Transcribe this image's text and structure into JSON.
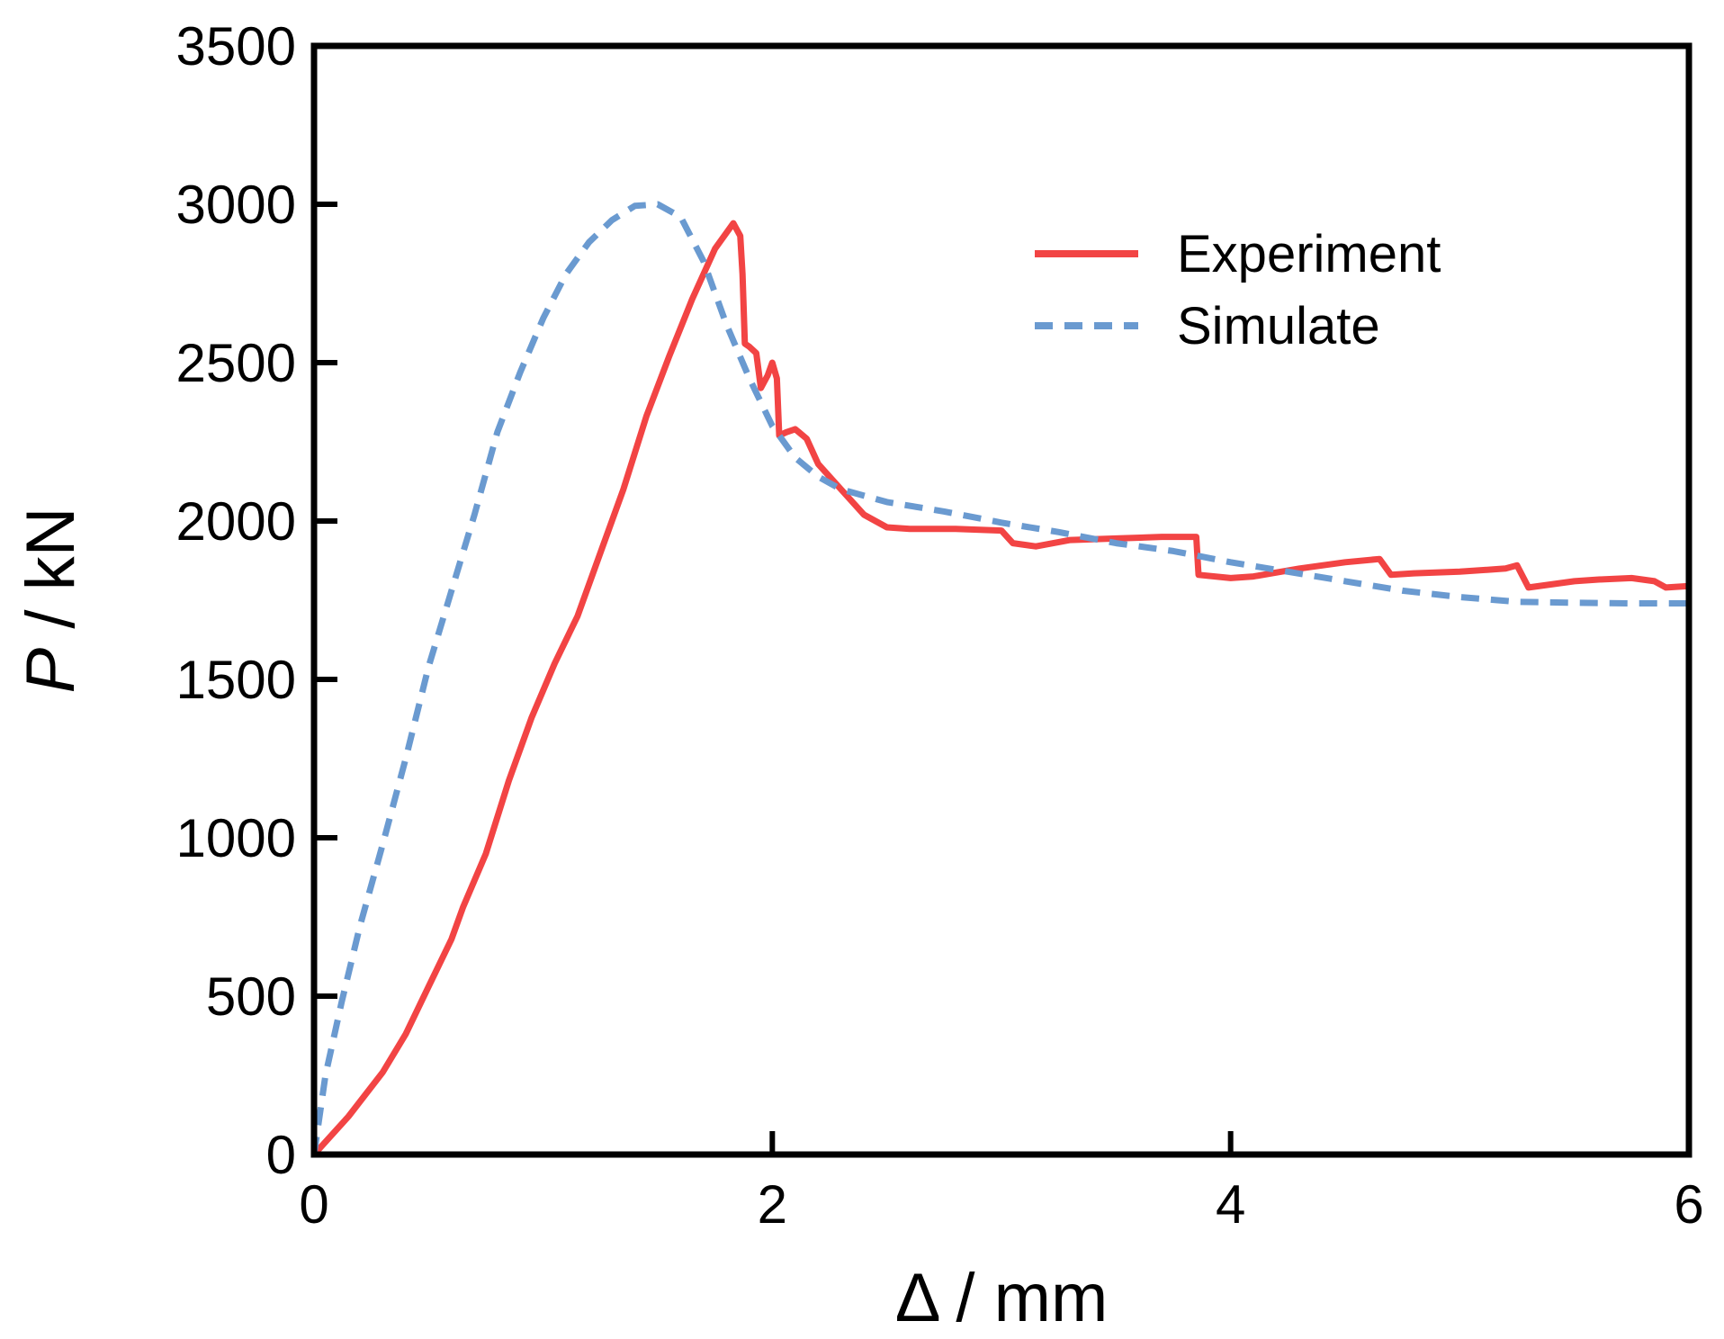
{
  "chart_data": {
    "type": "line",
    "title": "",
    "xlabel": "Δ / mm",
    "ylabel_italic": "P",
    "ylabel_rest": " / kN",
    "xlim": [
      0,
      6
    ],
    "ylim": [
      0,
      3500
    ],
    "x_ticks": [
      0,
      2,
      4,
      6
    ],
    "y_ticks": [
      0,
      500,
      1000,
      1500,
      2000,
      2500,
      3000,
      3500
    ],
    "grid": false,
    "legend_position": "top-right",
    "series": [
      {
        "name": "Experiment",
        "color": "#f24444",
        "style": "solid",
        "points": [
          [
            0,
            0
          ],
          [
            0.15,
            120
          ],
          [
            0.3,
            260
          ],
          [
            0.4,
            380
          ],
          [
            0.5,
            530
          ],
          [
            0.6,
            680
          ],
          [
            0.65,
            780
          ],
          [
            0.75,
            950
          ],
          [
            0.85,
            1180
          ],
          [
            0.95,
            1380
          ],
          [
            1.05,
            1550
          ],
          [
            1.15,
            1700
          ],
          [
            1.25,
            1900
          ],
          [
            1.35,
            2100
          ],
          [
            1.45,
            2330
          ],
          [
            1.55,
            2520
          ],
          [
            1.65,
            2700
          ],
          [
            1.75,
            2860
          ],
          [
            1.83,
            2940
          ],
          [
            1.86,
            2900
          ],
          [
            1.87,
            2780
          ],
          [
            1.88,
            2560
          ],
          [
            1.9,
            2550
          ],
          [
            1.93,
            2530
          ],
          [
            1.95,
            2420
          ],
          [
            1.98,
            2460
          ],
          [
            2.0,
            2500
          ],
          [
            2.02,
            2450
          ],
          [
            2.03,
            2270
          ],
          [
            2.06,
            2280
          ],
          [
            2.1,
            2290
          ],
          [
            2.15,
            2260
          ],
          [
            2.2,
            2180
          ],
          [
            2.3,
            2100
          ],
          [
            2.4,
            2020
          ],
          [
            2.5,
            1980
          ],
          [
            2.6,
            1975
          ],
          [
            2.8,
            1975
          ],
          [
            3.0,
            1970
          ],
          [
            3.05,
            1930
          ],
          [
            3.15,
            1920
          ],
          [
            3.3,
            1940
          ],
          [
            3.5,
            1945
          ],
          [
            3.7,
            1950
          ],
          [
            3.85,
            1950
          ],
          [
            3.86,
            1830
          ],
          [
            4.0,
            1820
          ],
          [
            4.1,
            1825
          ],
          [
            4.3,
            1850
          ],
          [
            4.5,
            1870
          ],
          [
            4.65,
            1880
          ],
          [
            4.7,
            1830
          ],
          [
            4.8,
            1835
          ],
          [
            5.0,
            1840
          ],
          [
            5.2,
            1850
          ],
          [
            5.25,
            1860
          ],
          [
            5.3,
            1790
          ],
          [
            5.4,
            1800
          ],
          [
            5.5,
            1810
          ],
          [
            5.6,
            1815
          ],
          [
            5.75,
            1820
          ],
          [
            5.85,
            1810
          ],
          [
            5.9,
            1790
          ],
          [
            6.0,
            1795
          ]
        ]
      },
      {
        "name": "Simulate",
        "color": "#6a9ad0",
        "style": "dashed",
        "points": [
          [
            0,
            0
          ],
          [
            0.05,
            250
          ],
          [
            0.12,
            480
          ],
          [
            0.2,
            720
          ],
          [
            0.3,
            980
          ],
          [
            0.4,
            1250
          ],
          [
            0.5,
            1540
          ],
          [
            0.6,
            1780
          ],
          [
            0.7,
            2020
          ],
          [
            0.8,
            2280
          ],
          [
            0.9,
            2470
          ],
          [
            1.0,
            2640
          ],
          [
            1.1,
            2780
          ],
          [
            1.2,
            2880
          ],
          [
            1.3,
            2950
          ],
          [
            1.4,
            2995
          ],
          [
            1.5,
            3000
          ],
          [
            1.6,
            2960
          ],
          [
            1.7,
            2820
          ],
          [
            1.8,
            2620
          ],
          [
            1.9,
            2450
          ],
          [
            2.0,
            2300
          ],
          [
            2.1,
            2200
          ],
          [
            2.2,
            2140
          ],
          [
            2.3,
            2100
          ],
          [
            2.5,
            2060
          ],
          [
            2.75,
            2030
          ],
          [
            3.0,
            1995
          ],
          [
            3.25,
            1965
          ],
          [
            3.5,
            1930
          ],
          [
            3.75,
            1905
          ],
          [
            4.0,
            1870
          ],
          [
            4.25,
            1840
          ],
          [
            4.5,
            1810
          ],
          [
            4.75,
            1780
          ],
          [
            5.0,
            1760
          ],
          [
            5.25,
            1745
          ],
          [
            5.5,
            1742
          ],
          [
            5.75,
            1740
          ],
          [
            6.0,
            1740
          ]
        ]
      }
    ]
  }
}
